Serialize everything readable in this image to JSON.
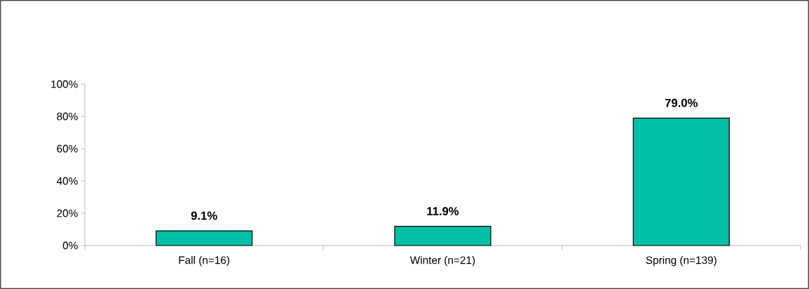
{
  "chart_data": {
    "type": "bar",
    "categories": [
      "Fall (n=16)",
      "Winter (n=21)",
      "Spring (n=139)"
    ],
    "values": [
      9.1,
      11.9,
      79.0
    ],
    "value_labels": [
      "9.1%",
      "11.9%",
      "79.0%"
    ],
    "color": "#00c0a8",
    "ylim": [
      0,
      100
    ],
    "yticks": [
      {
        "value": 0,
        "label": "0%"
      },
      {
        "value": 20,
        "label": "20%"
      },
      {
        "value": 40,
        "label": "40%"
      },
      {
        "value": 60,
        "label": "60%"
      },
      {
        "value": 80,
        "label": "80%"
      },
      {
        "value": 100,
        "label": "100%"
      }
    ],
    "grid": false
  }
}
